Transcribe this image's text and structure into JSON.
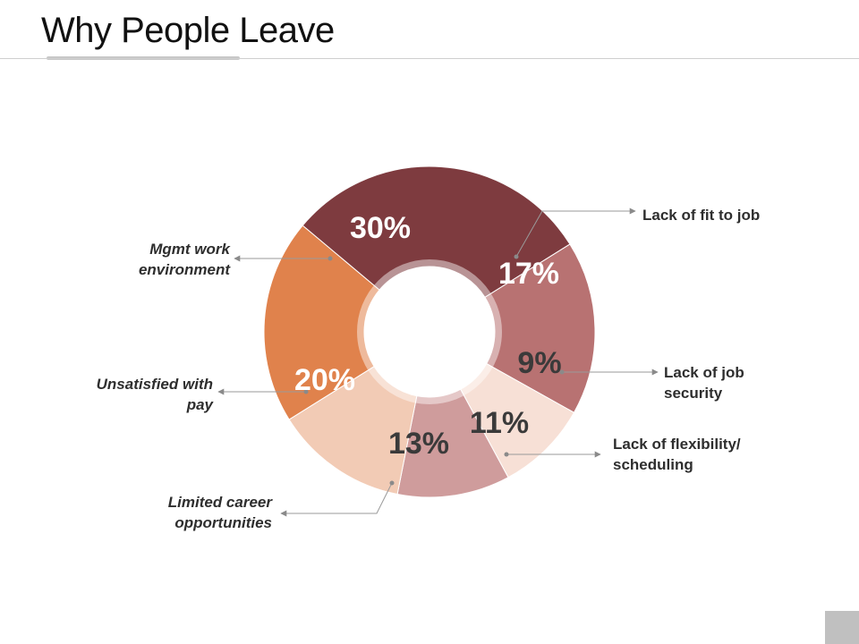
{
  "title": "Why People Leave",
  "chart_data": {
    "type": "pie",
    "variant": "donut",
    "title": "Why People Leave",
    "slices": [
      {
        "label": "Lack of fit to job",
        "value": 17,
        "display": "17%",
        "color": "#b87272"
      },
      {
        "label": "Lack of job security",
        "value": 9,
        "display": "9%",
        "color": "#f7e0d6"
      },
      {
        "label": "Lack of flexibility/ scheduling",
        "value": 11,
        "display": "11%",
        "color": "#cf9c9c"
      },
      {
        "label": "Limited career opportunities",
        "value": 13,
        "display": "13%",
        "color": "#f2cbb5"
      },
      {
        "label": "Unsatisfied with pay",
        "value": 20,
        "display": "20%",
        "color": "#e0824c"
      },
      {
        "label": "Mgmt work environment",
        "value": 30,
        "display": "30%",
        "color": "#7e3b3f"
      }
    ]
  },
  "callouts": {
    "fit": [
      "Lack of fit to job"
    ],
    "security": [
      "Lack of job",
      "security"
    ],
    "flex": [
      "Lack of flexibility/",
      "scheduling"
    ],
    "career": [
      "Limited career",
      "opportunities"
    ],
    "pay": [
      "Unsatisfied with",
      "pay"
    ],
    "mgmt": [
      "Mgmt work",
      "environment"
    ]
  }
}
